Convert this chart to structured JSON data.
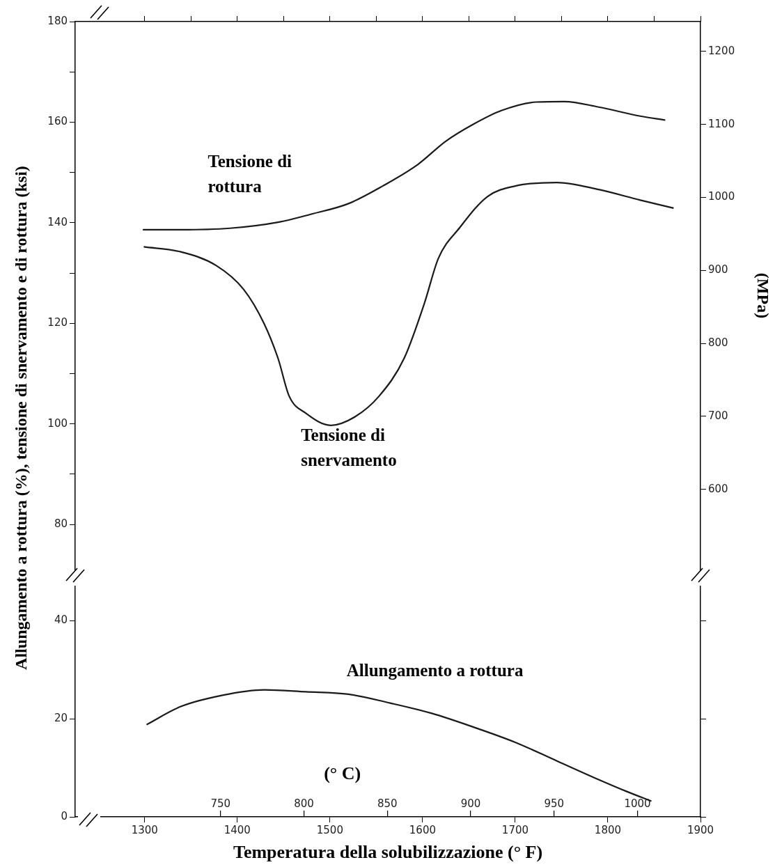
{
  "chart_data": [
    {
      "type": "line",
      "ylabel": "Allungamento a rottura (%), tensione di snervamento e di rottura (ksi)",
      "y2label": "(MPa)",
      "xlim": [
        1225,
        1900
      ],
      "xticks": [
        1300,
        {
          "value": 1350,
          "label": null
        },
        1400,
        {
          "value": 1450,
          "label": null
        },
        1500,
        {
          "value": 1550,
          "label": null
        },
        1600,
        {
          "value": 1650,
          "label": null
        },
        1700,
        {
          "value": 1750,
          "label": null
        },
        1800,
        {
          "value": 1850,
          "label": null
        },
        1900
      ],
      "tick_labels": "y",
      "ylim": [
        71,
        180
      ],
      "yticks": [
        80,
        {
          "value": 90,
          "label": null
        },
        100,
        {
          "value": 110,
          "label": null
        },
        120,
        {
          "value": 130,
          "label": null
        },
        140,
        {
          "value": 150,
          "label": null
        },
        160,
        {
          "value": 170,
          "label": null
        },
        180
      ],
      "y2lim": [
        490,
        1241
      ],
      "y2ticks": [
        600,
        700,
        800,
        900,
        1000,
        1100,
        1200
      ],
      "grid": false,
      "legend": false,
      "series": [
        {
          "color": "#1a1a1a",
          "x": [
            1298,
            1339,
            1392,
            1444,
            1482,
            1520,
            1557,
            1595,
            1625,
            1655,
            1685,
            1723,
            1753,
            1790,
            1835,
            1862
          ],
          "values": [
            138.6,
            138.6,
            138.9,
            140.1,
            141.8,
            143.8,
            147.3,
            151.6,
            156.2,
            159.6,
            162.3,
            164.0,
            164.1,
            163.0,
            161.2,
            160.4
          ]
        },
        {
          "color": "#1a1a1a",
          "x": [
            1299,
            1339,
            1377,
            1407,
            1429,
            1444,
            1456,
            1474,
            1501,
            1527,
            1553,
            1580,
            1602,
            1617,
            1640,
            1670,
            1700,
            1745,
            1790,
            1835,
            1871
          ],
          "values": [
            135.2,
            134.2,
            131.5,
            126.7,
            119.9,
            113.0,
            105.5,
            102.1,
            99.7,
            101.4,
            105.5,
            113.0,
            124.0,
            132.9,
            139.0,
            145.2,
            147.3,
            148.0,
            146.6,
            144.5,
            142.9
          ]
        }
      ],
      "annotations": [
        "Tensione di rottura",
        "Tensione di snervamento"
      ]
    },
    {
      "type": "line",
      "xlabel": "Temperatura della solubilizzazione (° F)",
      "xlim": [
        1225,
        1900
      ],
      "xticks": [
        1300,
        1400,
        1500,
        1600,
        1700,
        1800,
        1900
      ],
      "ylim": [
        0,
        47
      ],
      "yticks": [
        0,
        20,
        40
      ],
      "x2lim": [
        662.8,
        1037.8
      ],
      "x2ticks": [
        750,
        800,
        850,
        900,
        950,
        1000
      ],
      "x2label": "(° C)",
      "grid": false,
      "legend": false,
      "series": [
        {
          "color": "#1a1a1a",
          "x": [
            1302,
            1339,
            1384,
            1429,
            1474,
            1520,
            1565,
            1610,
            1655,
            1700,
            1745,
            1790,
            1820,
            1847
          ],
          "values": [
            18.8,
            22.5,
            24.8,
            25.9,
            25.5,
            25.0,
            23.2,
            21.1,
            18.3,
            15.2,
            11.4,
            7.6,
            5.2,
            3.2
          ]
        }
      ],
      "annotations": [
        "Allungamento a rottura"
      ]
    }
  ]
}
